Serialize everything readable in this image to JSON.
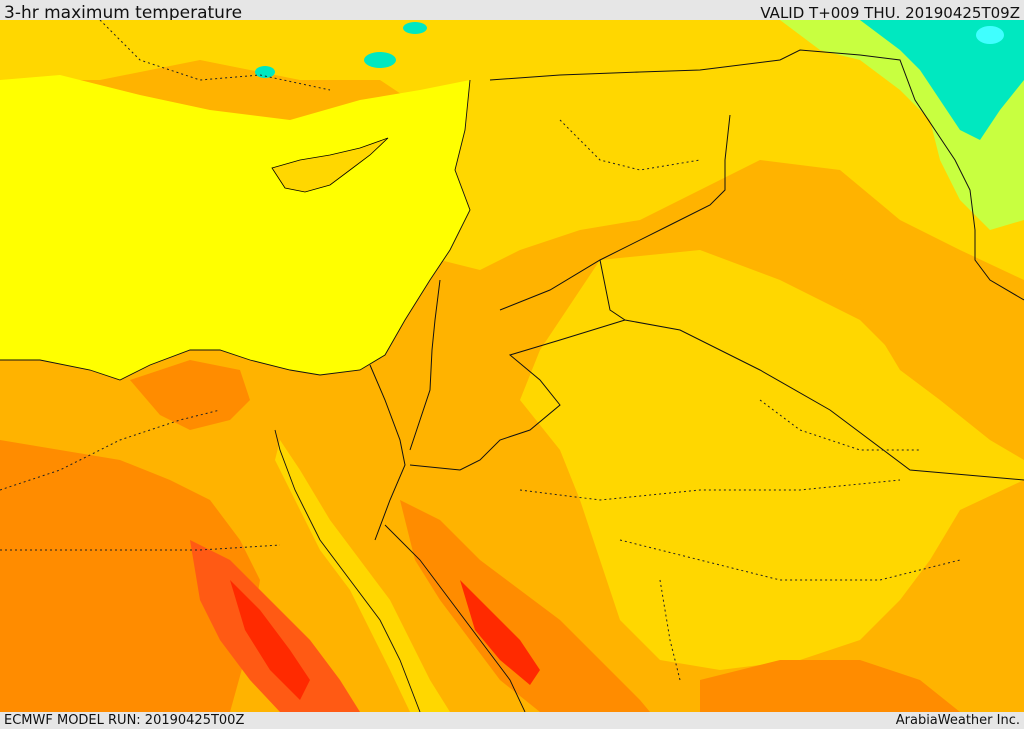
{
  "header": {
    "title": "3-hr maximum temperature",
    "valid_time": "VALID T+009 THU. 20190425T09Z"
  },
  "footer": {
    "model_run": "ECMWF MODEL RUN: 20190425T00Z",
    "credit": "ArabiaWeather Inc."
  },
  "map": {
    "colors": {
      "sea": "#ffff00",
      "warm_yellow": "#ffd700",
      "light_orange": "#ffb300",
      "orange": "#ff8c00",
      "dark_orange": "#ff5a14",
      "red": "#ff2a00",
      "cool_green": "#c8ff40",
      "cyan": "#00e8c0"
    }
  }
}
